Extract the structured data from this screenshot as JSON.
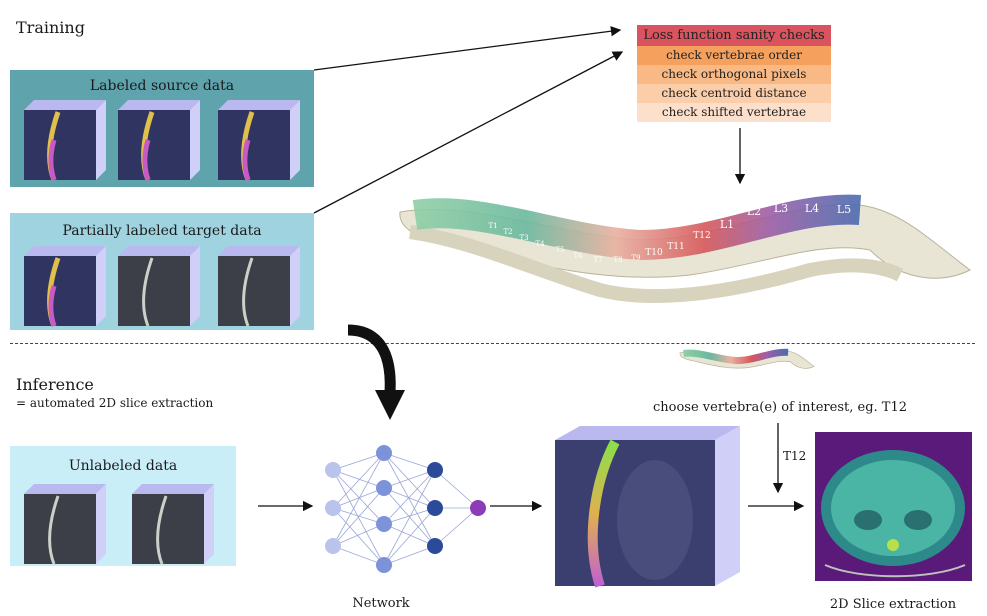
{
  "training": {
    "title": "Training"
  },
  "inference": {
    "title": "Inference",
    "subtitle": "= automated 2D slice extraction"
  },
  "panels": {
    "source": {
      "title": "Labeled source data",
      "bg": "#5fa3ad"
    },
    "target": {
      "title": "Partially labeled target data",
      "bg": "#9fd3e0"
    },
    "unlabeled": {
      "title": "Unlabeled data",
      "bg": "#c9eef8"
    }
  },
  "loss": {
    "title": "Loss function sanity checks",
    "checks": [
      {
        "label": "check vertebrae order",
        "color": "#f5a05d"
      },
      {
        "label": "check orthogonal pixels",
        "color": "#f8b985"
      },
      {
        "label": "check centroid distance",
        "color": "#fbcda9"
      },
      {
        "label": "check shifted vertebrae",
        "color": "#fde0cb"
      }
    ],
    "title_color": "#d9545e"
  },
  "spine": {
    "vertebrae": [
      "T1",
      "T2",
      "T3",
      "T4",
      "T5",
      "T6",
      "T7",
      "T8",
      "T9",
      "T10",
      "T11",
      "T12",
      "L1",
      "L2",
      "L3",
      "L4",
      "L5"
    ]
  },
  "choose_text": "choose vertebra(e) of interest, eg. T12",
  "t12_label": "T12",
  "network_label": "Network",
  "slice_label": "2D Slice extraction"
}
